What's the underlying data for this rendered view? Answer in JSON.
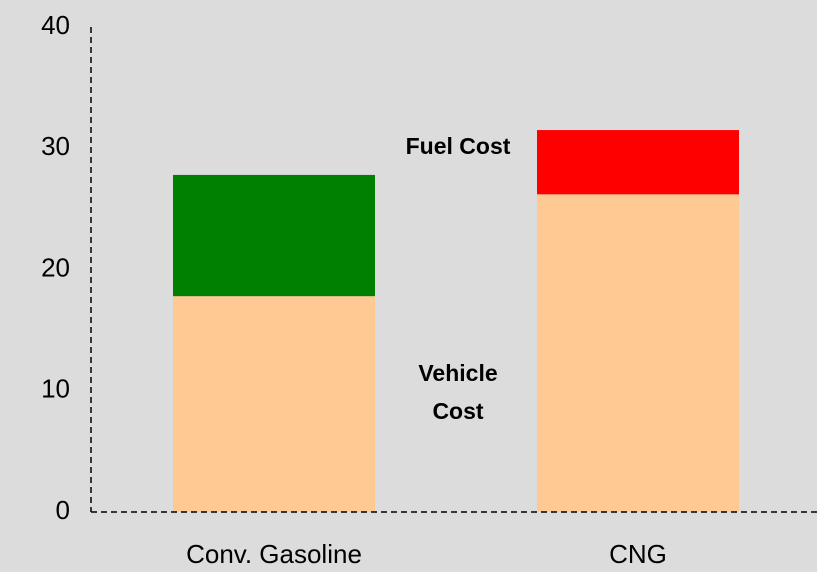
{
  "chart_data": {
    "type": "stacked_bar",
    "categories": [
      "Conv. Gasoline",
      "CNG"
    ],
    "series": [
      {
        "name": "Vehicle Cost",
        "color": "#ffc994",
        "values": [
          17.8,
          26.2
        ]
      },
      {
        "name": "Fuel Cost",
        "colors": [
          "#008000",
          "#ff0000"
        ],
        "values": [
          10.0,
          5.3
        ]
      }
    ],
    "ylim": [
      0,
      40
    ],
    "yticks": [
      0,
      10,
      20,
      30,
      40
    ]
  }
}
